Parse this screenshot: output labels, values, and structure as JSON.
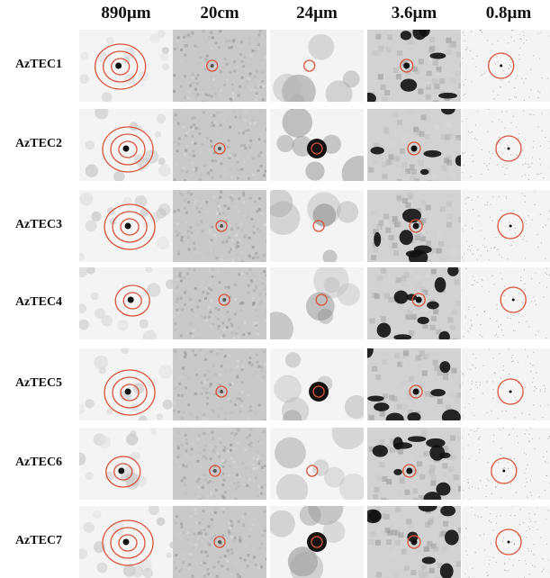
{
  "columns": [
    "890µm",
    "20cm",
    "24µm",
    "3.6µm",
    "0.8µm"
  ],
  "rows": [
    "AzTEC1",
    "AzTEC2",
    "AzTEC3",
    "AzTEC4",
    "AzTEC5",
    "AzTEC6",
    "AzTEC7"
  ],
  "colors": {
    "contour": "#d9533a",
    "source": "#111111",
    "background_light": "#f4f4f4",
    "background_noise": "#c9c9c9",
    "background_irac": "#d2d2d2"
  }
}
